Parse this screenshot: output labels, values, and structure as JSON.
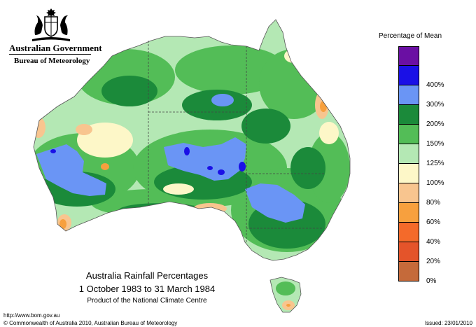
{
  "header": {
    "gov_name": "Australian Government",
    "bureau_name": "Bureau of Meteorology"
  },
  "legend": {
    "title": "Percentage of Mean",
    "levels": [
      {
        "label": "",
        "color": "#6a0fa3"
      },
      {
        "label": "400%",
        "color": "#1a10e6"
      },
      {
        "label": "300%",
        "color": "#6a95f5"
      },
      {
        "label": "200%",
        "color": "#1b8a3a"
      },
      {
        "label": "150%",
        "color": "#53bd57"
      },
      {
        "label": "125%",
        "color": "#b4e8b4"
      },
      {
        "label": "100%",
        "color": "#fdf7c8"
      },
      {
        "label": "80%",
        "color": "#f8c58f"
      },
      {
        "label": "60%",
        "color": "#f7a03e"
      },
      {
        "label": "40%",
        "color": "#f46a2a"
      },
      {
        "label": "20%",
        "color": "#e4542a"
      },
      {
        "label": "0%",
        "color": "#c56a3a"
      }
    ]
  },
  "title": {
    "line1": "Australia Rainfall Percentages",
    "line2": "1 October 1983 to 31 March 1984",
    "line3": "Product of the National Climate Centre"
  },
  "footer": {
    "url": "http://www.bom.gov.au",
    "copyright": "© Commonwealth of Australia 2010, Australian Bureau of Meteorology",
    "issued": "Issued: 23/01/2010"
  },
  "colors": {
    "ocean": "#ffffff",
    "coast": "#555555",
    "border": "#444444"
  }
}
